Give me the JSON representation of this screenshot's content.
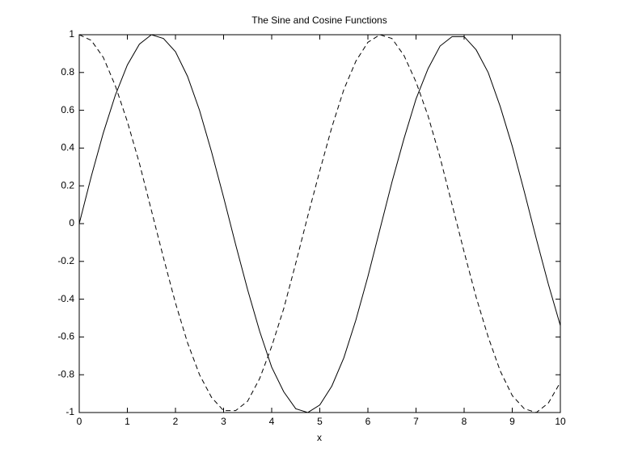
{
  "chart_data": {
    "type": "line",
    "title": "The Sine and Cosine Functions",
    "x_label": "x",
    "x": [
      0,
      0.25,
      0.5,
      0.75,
      1,
      1.25,
      1.5,
      1.75,
      2,
      2.25,
      2.5,
      2.75,
      3,
      3.25,
      3.5,
      3.75,
      4,
      4.25,
      4.5,
      4.75,
      5,
      5.25,
      5.5,
      5.75,
      6,
      6.25,
      6.5,
      6.75,
      7,
      7.25,
      7.5,
      7.75,
      8,
      8.25,
      8.5,
      8.75,
      9,
      9.25,
      9.5,
      9.75,
      10
    ],
    "series": [
      {
        "color": "#000000",
        "dashed": false,
        "values": [
          0,
          0.25,
          0.48,
          0.68,
          0.84,
          0.95,
          1.0,
          0.98,
          0.91,
          0.78,
          0.6,
          0.38,
          0.14,
          -0.11,
          -0.35,
          -0.57,
          -0.76,
          -0.89,
          -0.98,
          -1.0,
          -0.96,
          -0.86,
          -0.71,
          -0.51,
          -0.28,
          -0.03,
          0.22,
          0.45,
          0.66,
          0.82,
          0.94,
          0.99,
          0.99,
          0.92,
          0.8,
          0.62,
          0.41,
          0.17,
          -0.08,
          -0.32,
          -0.54
        ]
      },
      {
        "color": "#000000",
        "dashed": true,
        "values": [
          1,
          0.97,
          0.88,
          0.73,
          0.54,
          0.32,
          0.07,
          -0.18,
          -0.42,
          -0.63,
          -0.8,
          -0.92,
          -0.99,
          -0.99,
          -0.94,
          -0.82,
          -0.65,
          -0.45,
          -0.21,
          0.04,
          0.28,
          0.51,
          0.71,
          0.86,
          0.96,
          1.0,
          0.98,
          0.89,
          0.75,
          0.57,
          0.35,
          0.1,
          -0.15,
          -0.39,
          -0.6,
          -0.78,
          -0.91,
          -0.98,
          -1.0,
          -0.95,
          -0.84
        ]
      }
    ],
    "xlim": [
      0,
      10
    ],
    "xticks": [
      0,
      1,
      2,
      3,
      4,
      5,
      6,
      7,
      8,
      9,
      10
    ],
    "ylim": [
      -1,
      1
    ],
    "yticks": [
      -1,
      -0.8,
      -0.6,
      -0.4,
      -0.2,
      0,
      0.2,
      0.4,
      0.6,
      0.8,
      1
    ],
    "grid": false
  }
}
